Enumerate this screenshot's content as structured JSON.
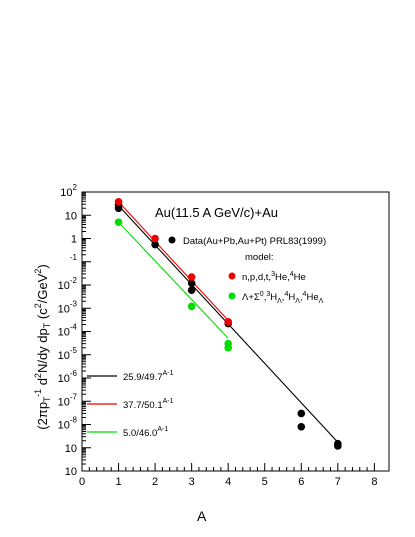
{
  "chart_data": {
    "type": "scatter",
    "title": "Au(11.5 A GeV/c)+Au",
    "xlabel": "A",
    "ylabel": "(2πpT)-1 d2N/dy dpT (c2/GeV2)",
    "xlim": [
      0,
      8.4
    ],
    "ylim": [
      1e-10,
      100
    ],
    "y_scale": "log",
    "x_ticks": [
      "0",
      "1",
      "2",
      "3",
      "4",
      "5",
      "6",
      "7",
      "8"
    ],
    "y_ticks": [
      {
        "v": 100,
        "base": "10",
        "exp": "2"
      },
      {
        "v": 10,
        "base": "10",
        "exp": ""
      },
      {
        "v": 1,
        "base": "1",
        "exp": ""
      },
      {
        "v": 0.1,
        "base": "",
        "exp": "-1"
      },
      {
        "v": 0.01,
        "base": "10",
        "exp": "-2"
      },
      {
        "v": 0.001,
        "base": "10",
        "exp": "-3"
      },
      {
        "v": 0.0001,
        "base": "10",
        "exp": "-4"
      },
      {
        "v": 1e-05,
        "base": "10",
        "exp": "-5"
      },
      {
        "v": 1e-06,
        "base": "10",
        "exp": "-6"
      },
      {
        "v": 1e-07,
        "base": "10",
        "exp": "-7"
      },
      {
        "v": 1e-08,
        "base": "10",
        "exp": "-8"
      },
      {
        "v": 1e-09,
        "base": "10",
        "exp": ""
      },
      {
        "v": 1e-10,
        "base": "10",
        "exp": ""
      }
    ],
    "annotations": {
      "data_legend": "Data(Au+Pb,Au+Pt) PRL83(1999)",
      "model_label": "model:",
      "model_series_1": "n,p,d,t,3He,4He",
      "model_series_2": "Λ+Σ0,3HΛ,4HΛ,4HeΛ"
    },
    "series": [
      {
        "name": "Data(Au+Pb,Au+Pt) PRL83(1999)",
        "kind": "points",
        "color": "#000000",
        "points": [
          [
            1,
            20
          ],
          [
            1,
            28
          ],
          [
            2,
            0.55
          ],
          [
            3,
            0.012
          ],
          [
            3,
            0.006
          ],
          [
            4,
            0.00022
          ],
          [
            6,
            3e-08
          ],
          [
            6,
            8e-09
          ],
          [
            7,
            1.5e-09
          ],
          [
            7,
            1.2e-09
          ]
        ]
      },
      {
        "name": "n,p,d,t,3He,4He",
        "kind": "points",
        "color": "#ee0000",
        "points": [
          [
            1,
            38
          ],
          [
            2,
            1.0
          ],
          [
            3,
            0.022
          ],
          [
            4,
            0.00026
          ]
        ]
      },
      {
        "name": "Λ+Σ0,3HΛ,4HΛ,4HeΛ",
        "kind": "points",
        "color": "#00dd00",
        "points": [
          [
            1,
            5
          ],
          [
            3,
            0.0012
          ],
          [
            4,
            3e-05
          ],
          [
            4,
            2e-05
          ]
        ]
      }
    ],
    "fit_lines": [
      {
        "name": "25.9/49.7^(A-1)",
        "base": "25.9/49.7",
        "exp": "A-1",
        "color": "#000000",
        "a": 25.9,
        "b": 49.7,
        "x_range": [
          1,
          7
        ]
      },
      {
        "name": "37.7/50.1^(A-1)",
        "base": "37.7/50.1",
        "exp": "A-1",
        "color": "#ee0000",
        "a": 37.7,
        "b": 50.1,
        "x_range": [
          1,
          4
        ]
      },
      {
        "name": "5.0/46.0^(A-1)",
        "base": "5.0/46.0",
        "exp": "A-1",
        "color": "#00dd00",
        "a": 5.0,
        "b": 46.0,
        "x_range": [
          1,
          4
        ]
      }
    ]
  }
}
